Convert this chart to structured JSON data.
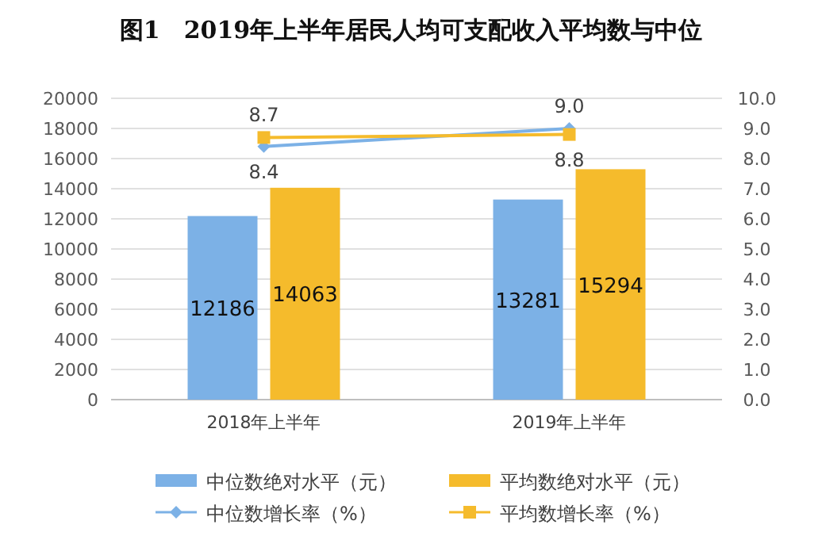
{
  "chart_data": {
    "type": "bar",
    "title": "图1　2019年上半年居民人均可支配收入平均数与中位",
    "categories": [
      "2018年上半年",
      "2019年上半年"
    ],
    "series": [
      {
        "name": "中位数绝对水平（元）",
        "color": "#7cb1e6",
        "values": [
          12186,
          13281
        ]
      },
      {
        "name": "平均数绝对水平（元）",
        "color": "#f5bb2c",
        "values": [
          14063,
          15294
        ]
      },
      {
        "name": "中位数增长率（%）",
        "type": "line",
        "axis": "y2",
        "marker": "diamond",
        "color": "#7cb1e6",
        "values": [
          8.4,
          9.0
        ],
        "value_labels": [
          "8.4",
          "9.0"
        ]
      },
      {
        "name": "平均数增长率（%）",
        "type": "line",
        "axis": "y2",
        "marker": "square",
        "color": "#f5bb2c",
        "values": [
          8.7,
          8.8
        ],
        "value_labels": [
          "8.7",
          "8.8"
        ]
      }
    ],
    "ylim": [
      0,
      20000
    ],
    "yticks": [
      0,
      2000,
      4000,
      6000,
      8000,
      10000,
      12000,
      14000,
      16000,
      18000,
      20000
    ],
    "y2lim": [
      0,
      10
    ],
    "y2ticks": [
      {
        "value": 0,
        "label": "0.0"
      },
      {
        "value": 1,
        "label": "1.0"
      },
      {
        "value": 2,
        "label": "2.0"
      },
      {
        "value": 3,
        "label": "3.0"
      },
      {
        "value": 4,
        "label": "4.0"
      },
      {
        "value": 5,
        "label": "5.0"
      },
      {
        "value": 6,
        "label": "6.0"
      },
      {
        "value": 7,
        "label": "7.0"
      },
      {
        "value": 8,
        "label": "8.0"
      },
      {
        "value": 9,
        "label": "9.0"
      },
      {
        "value": 10,
        "label": "10.0"
      }
    ],
    "grid": "y",
    "legend": "bottom",
    "data_labels": true
  }
}
